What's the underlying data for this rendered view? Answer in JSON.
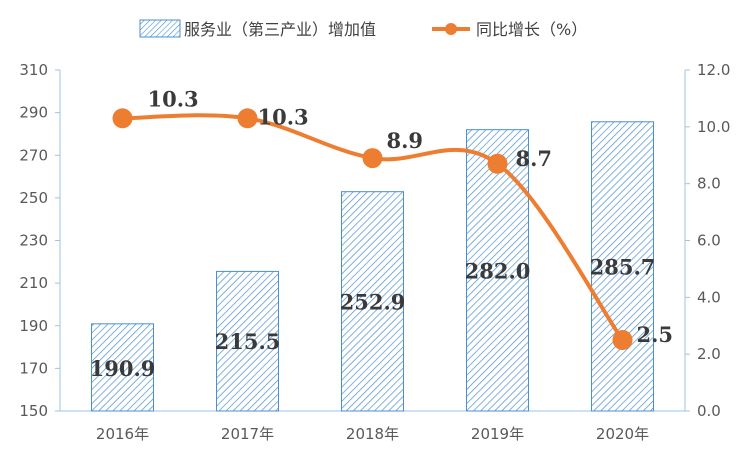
{
  "chart_data": {
    "type": "bar",
    "categories": [
      "2016年",
      "2017年",
      "2018年",
      "2019年",
      "2020年"
    ],
    "series": [
      {
        "name": "服务业（第三产业）增加值",
        "type": "bar",
        "axis": "left",
        "values": [
          190.9,
          215.5,
          252.9,
          282.0,
          285.7
        ],
        "labels": [
          "190.9",
          "215.5",
          "252.9",
          "282.0",
          "285.7"
        ]
      },
      {
        "name": "同比增长（%）",
        "type": "line",
        "axis": "right",
        "values": [
          10.3,
          10.3,
          8.9,
          8.7,
          2.5
        ],
        "labels": [
          "10.3",
          "10.3",
          "8.9",
          "8.7",
          "2.5"
        ]
      }
    ],
    "y_left": {
      "ylim": [
        150,
        310
      ],
      "ticks": [
        "150",
        "170",
        "190",
        "210",
        "230",
        "250",
        "270",
        "290",
        "310"
      ]
    },
    "y_right": {
      "ylim": [
        0,
        12
      ],
      "ticks": [
        "0.0",
        "2.0",
        "4.0",
        "6.0",
        "8.0",
        "10.0",
        "12.0"
      ]
    },
    "grid": false,
    "legend_position": "top",
    "colors": {
      "bar_stroke": "#4a8fd0",
      "bar_hatch": "#4a8fd0",
      "line": "#ed7d31",
      "axis": "#9dc3e6",
      "text": "#595959"
    }
  }
}
